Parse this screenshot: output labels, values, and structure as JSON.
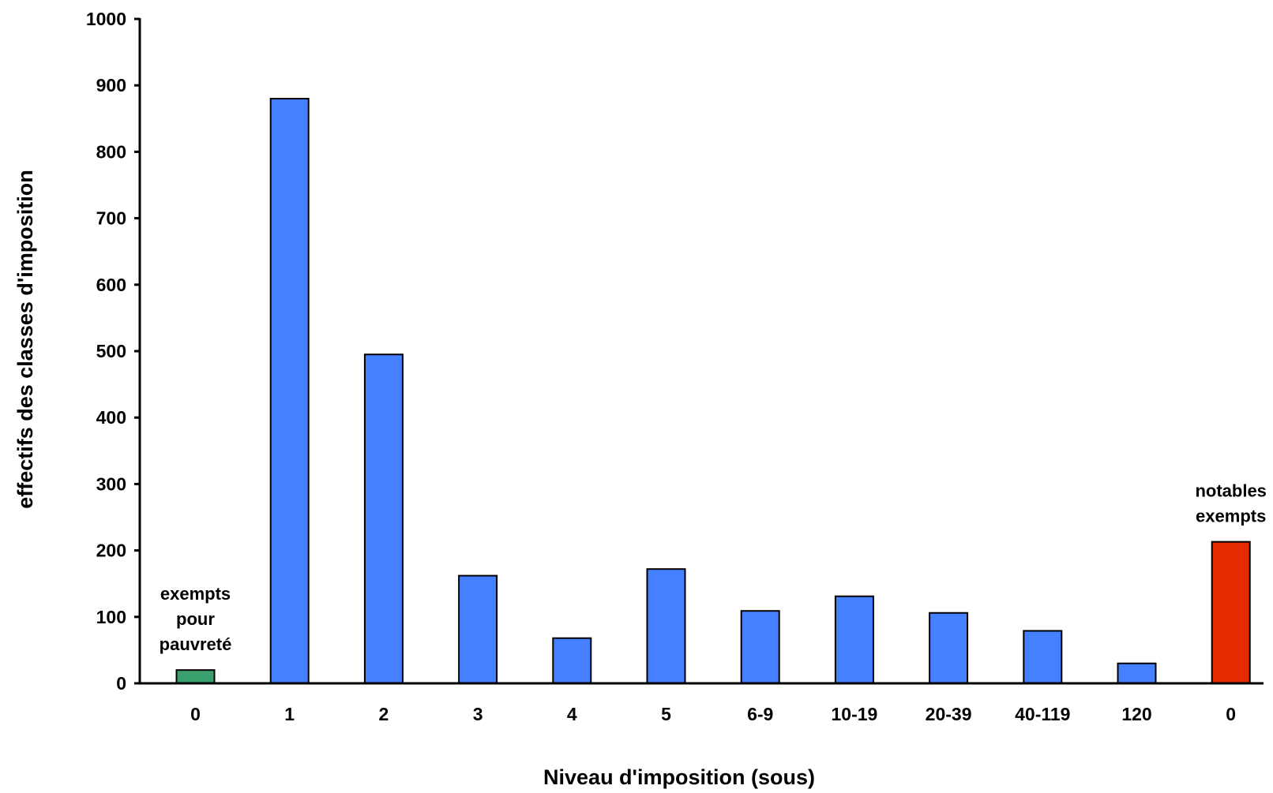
{
  "chart_data": {
    "type": "bar",
    "title": "",
    "xlabel": "Niveau d'imposition (sous)",
    "ylabel": "effectifs des classes d'imposition",
    "ylim": [
      0,
      1000
    ],
    "yticks": [
      0,
      100,
      200,
      300,
      400,
      500,
      600,
      700,
      800,
      900,
      1000
    ],
    "grid": false,
    "legend": "none",
    "categories": [
      "0",
      "1",
      "2",
      "3",
      "4",
      "5",
      "6-9",
      "10-19",
      "20-39",
      "40-119",
      "120",
      "0"
    ],
    "values": [
      20,
      880,
      495,
      162,
      68,
      172,
      109,
      131,
      106,
      79,
      30,
      213
    ],
    "bar_colors": [
      "#3aa06e",
      "#4480ff",
      "#4480ff",
      "#4480ff",
      "#4480ff",
      "#4480ff",
      "#4480ff",
      "#4480ff",
      "#4480ff",
      "#4480ff",
      "#4480ff",
      "#e52a00"
    ],
    "annotations": [
      {
        "category_index": 0,
        "lines": [
          "exempts",
          "pour",
          "pauvreté"
        ]
      },
      {
        "category_index": 11,
        "lines": [
          "notables",
          "exempts"
        ]
      }
    ]
  }
}
